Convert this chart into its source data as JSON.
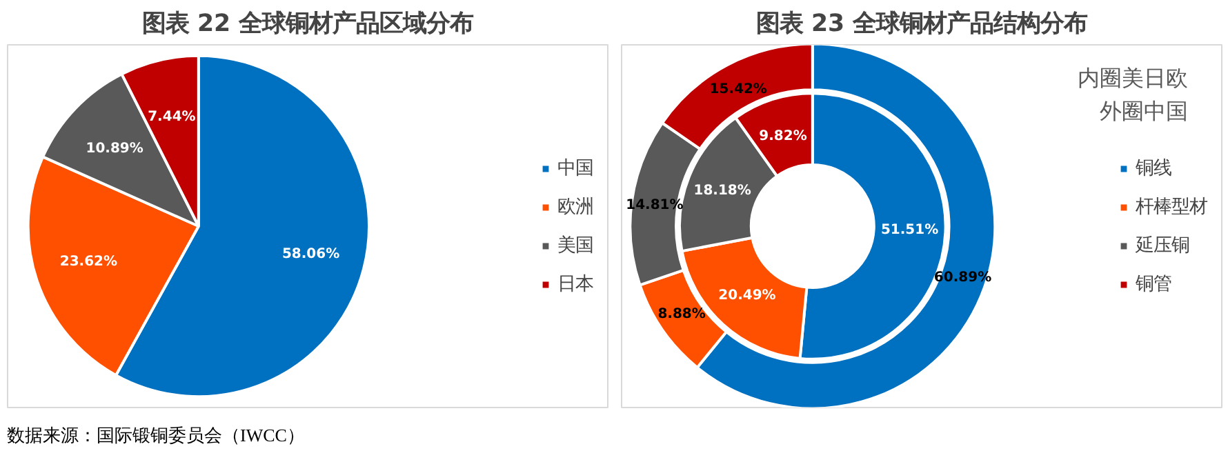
{
  "chart_data": [
    {
      "type": "pie",
      "title": "图表 22 全球铜材产品区域分布",
      "categories": [
        "中国",
        "欧洲",
        "美国",
        "日本"
      ],
      "values": [
        58.06,
        23.62,
        10.89,
        7.44
      ],
      "value_labels": [
        "58.06%",
        "23.62%",
        "10.89%",
        "7.44%"
      ],
      "colors": [
        "#0070c0",
        "#ff5000",
        "#595959",
        "#c00000"
      ],
      "legend": "right",
      "annotations": [
        "数据来源：国际锻铜委员会（IWCC）"
      ]
    },
    {
      "type": "donut",
      "title": "图表 23 全球铜材产品结构分布",
      "categories": [
        "铜线",
        "杆棒型材",
        "延压铜",
        "铜管"
      ],
      "colors": [
        "#0070c0",
        "#ff5000",
        "#595959",
        "#c00000"
      ],
      "series": [
        {
          "values": [
            51.51,
            20.49,
            18.18,
            9.82
          ],
          "value_labels": [
            "51.51%",
            "20.49%",
            "18.18%",
            "9.82%"
          ]
        },
        {
          "values": [
            60.89,
            8.88,
            14.81,
            15.42
          ],
          "value_labels": [
            "60.89%",
            "8.88%",
            "14.81%",
            "15.42%"
          ]
        }
      ],
      "legend": "right",
      "annotations": [
        "内圈美日欧",
        "外圈中国"
      ]
    }
  ]
}
